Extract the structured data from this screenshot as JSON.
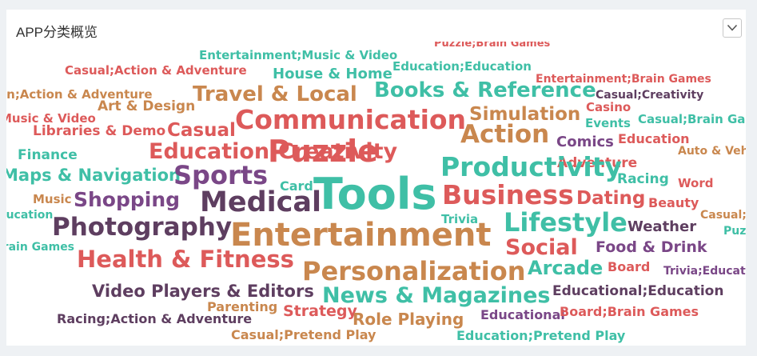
{
  "panel": {
    "title": "APP分类概览"
  },
  "colors": {
    "red": "#dd5a5a",
    "teal": "#3fbfa6",
    "orange": "#c9874e",
    "purple": "#7a4787",
    "dark": "#5e3e60"
  },
  "word_cloud": {
    "words": [
      {
        "text": "Puzzle;Brain Games",
        "color": "red"
      },
      {
        "text": "Entertainment;Music & Video",
        "color": "teal"
      },
      {
        "text": "Casual;Action & Adventure",
        "color": "red"
      },
      {
        "text": "Education;Education",
        "color": "teal"
      },
      {
        "text": "House & Home",
        "color": "teal"
      },
      {
        "text": "Entertainment;Brain Games",
        "color": "red"
      },
      {
        "text": "Simulation;Action & Adventure",
        "color": "orange"
      },
      {
        "text": "Travel & Local",
        "color": "orange"
      },
      {
        "text": "Books & Reference",
        "color": "teal"
      },
      {
        "text": "Casual;Creativity",
        "color": "dark"
      },
      {
        "text": "Art & Design",
        "color": "orange"
      },
      {
        "text": "Casino",
        "color": "red"
      },
      {
        "text": "Casual;Music & Video",
        "color": "red"
      },
      {
        "text": "Communication",
        "color": "red"
      },
      {
        "text": "Simulation",
        "color": "orange"
      },
      {
        "text": "Events",
        "color": "teal"
      },
      {
        "text": "Casual;Brain Games",
        "color": "teal"
      },
      {
        "text": "Libraries & Demo",
        "color": "red"
      },
      {
        "text": "Casual",
        "color": "red"
      },
      {
        "text": "Action",
        "color": "orange"
      },
      {
        "text": "Comics",
        "color": "purple"
      },
      {
        "text": "Education",
        "color": "red"
      },
      {
        "text": "Puzzle",
        "color": "red"
      },
      {
        "text": "Auto & Vehicles",
        "color": "orange"
      },
      {
        "text": "Finance",
        "color": "teal"
      },
      {
        "text": "Education;Creativity",
        "color": "red"
      },
      {
        "text": "Adventure",
        "color": "red"
      },
      {
        "text": "Productivity",
        "color": "teal"
      },
      {
        "text": "Maps & Navigation",
        "color": "teal"
      },
      {
        "text": "Sports",
        "color": "purple"
      },
      {
        "text": "Racing",
        "color": "teal"
      },
      {
        "text": "Word",
        "color": "red"
      },
      {
        "text": "Card",
        "color": "teal"
      },
      {
        "text": "Tools",
        "color": "teal"
      },
      {
        "text": "Business",
        "color": "red"
      },
      {
        "text": "Medical",
        "color": "dark"
      },
      {
        "text": "Shopping",
        "color": "purple"
      },
      {
        "text": "Dating",
        "color": "red"
      },
      {
        "text": "Beauty",
        "color": "red"
      },
      {
        "text": "Music",
        "color": "orange"
      },
      {
        "text": "Education",
        "color": "teal"
      },
      {
        "text": "Trivia",
        "color": "teal"
      },
      {
        "text": "Casual;Education",
        "color": "orange"
      },
      {
        "text": "Lifestyle",
        "color": "teal"
      },
      {
        "text": "Weather",
        "color": "dark"
      },
      {
        "text": "Photography",
        "color": "dark"
      },
      {
        "text": "Entertainment",
        "color": "orange"
      },
      {
        "text": "Puzzle;Action",
        "color": "teal"
      },
      {
        "text": "Brain Games",
        "color": "teal"
      },
      {
        "text": "Social",
        "color": "red"
      },
      {
        "text": "Food & Drink",
        "color": "purple"
      },
      {
        "text": "Health & Fitness",
        "color": "red"
      },
      {
        "text": "Arcade",
        "color": "teal"
      },
      {
        "text": "Board",
        "color": "red"
      },
      {
        "text": "Trivia;Education",
        "color": "purple"
      },
      {
        "text": "Personalization",
        "color": "orange"
      },
      {
        "text": "Video Players & Editors",
        "color": "dark"
      },
      {
        "text": "News & Magazines",
        "color": "teal"
      },
      {
        "text": "Educational;Education",
        "color": "dark"
      },
      {
        "text": "Parenting",
        "color": "orange"
      },
      {
        "text": "Strategy",
        "color": "red"
      },
      {
        "text": "Educational",
        "color": "purple"
      },
      {
        "text": "Board;Brain Games",
        "color": "red"
      },
      {
        "text": "Racing;Action & Adventure",
        "color": "dark"
      },
      {
        "text": "Role Playing",
        "color": "orange"
      },
      {
        "text": "Casual;Pretend Play",
        "color": "orange"
      },
      {
        "text": "Education;Pretend Play",
        "color": "teal"
      }
    ]
  }
}
